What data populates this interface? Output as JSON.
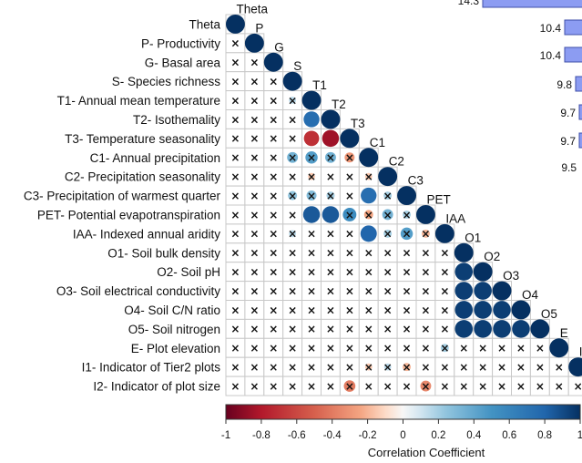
{
  "chart_data": {
    "type": "heatmap",
    "subtype": "lower-triangular correlation matrix with circles",
    "variables": [
      {
        "code": "Theta",
        "label": "Theta"
      },
      {
        "code": "P",
        "label": "P- Productivity"
      },
      {
        "code": "G",
        "label": "G- Basal area"
      },
      {
        "code": "S",
        "label": "S- Species richness"
      },
      {
        "code": "T1",
        "label": "T1- Annual mean temperature"
      },
      {
        "code": "T2",
        "label": "T2- Isothemality"
      },
      {
        "code": "T3",
        "label": "T3- Temperature seasonality"
      },
      {
        "code": "C1",
        "label": "C1- Annual precipitation"
      },
      {
        "code": "C2",
        "label": "C2- Precipitation seasonality"
      },
      {
        "code": "C3",
        "label": "C3- Precipitation of warmest quarter"
      },
      {
        "code": "PET",
        "label": "PET- Potential evapotranspiration"
      },
      {
        "code": "IAA",
        "label": "IAA- Indexed annual aridity"
      },
      {
        "code": "O1",
        "label": "O1- Soil bulk density"
      },
      {
        "code": "O2",
        "label": "O2- Soil pH"
      },
      {
        "code": "O3",
        "label": "O3- Soil electrical conductivity"
      },
      {
        "code": "O4",
        "label": "O4- Soil C/N ratio"
      },
      {
        "code": "O5",
        "label": "O5- Soil nitrogen"
      },
      {
        "code": "E",
        "label": "E- Plot elevation"
      },
      {
        "code": "I1",
        "label": "I1- Indicator of Tier2 plots"
      },
      {
        "code": "I2",
        "label": "I2- Indicator of plot size"
      }
    ],
    "correlations": [
      {
        "row": 4,
        "col": 3,
        "value": 0.15
      },
      {
        "row": 5,
        "col": 4,
        "value": 0.75
      },
      {
        "row": 6,
        "col": 4,
        "value": -0.7
      },
      {
        "row": 6,
        "col": 5,
        "value": -0.85
      },
      {
        "row": 7,
        "col": 3,
        "value": 0.35
      },
      {
        "row": 7,
        "col": 4,
        "value": 0.45
      },
      {
        "row": 7,
        "col": 5,
        "value": 0.35
      },
      {
        "row": 7,
        "col": 6,
        "value": -0.3
      },
      {
        "row": 8,
        "col": 4,
        "value": -0.15
      },
      {
        "row": 8,
        "col": 7,
        "value": -0.15
      },
      {
        "row": 9,
        "col": 3,
        "value": 0.25
      },
      {
        "row": 9,
        "col": 4,
        "value": 0.3
      },
      {
        "row": 9,
        "col": 5,
        "value": 0.2
      },
      {
        "row": 9,
        "col": 7,
        "value": 0.75
      },
      {
        "row": 9,
        "col": 8,
        "value": 0.2
      },
      {
        "row": 10,
        "col": 4,
        "value": 0.85
      },
      {
        "row": 10,
        "col": 5,
        "value": 0.85
      },
      {
        "row": 10,
        "col": 6,
        "value": 0.55
      },
      {
        "row": 10,
        "col": 7,
        "value": -0.25
      },
      {
        "row": 10,
        "col": 8,
        "value": 0.35
      },
      {
        "row": 10,
        "col": 9,
        "value": 0.2
      },
      {
        "row": 11,
        "col": 3,
        "value": 0.15
      },
      {
        "row": 11,
        "col": 7,
        "value": 0.8
      },
      {
        "row": 11,
        "col": 8,
        "value": 0.2
      },
      {
        "row": 11,
        "col": 9,
        "value": 0.45
      },
      {
        "row": 11,
        "col": 10,
        "value": -0.2
      },
      {
        "row": 17,
        "col": 11,
        "value": 0.2
      },
      {
        "row": 18,
        "col": 7,
        "value": -0.15
      },
      {
        "row": 18,
        "col": 8,
        "value": 0.15
      },
      {
        "row": 18,
        "col": 9,
        "value": -0.2
      },
      {
        "row": 19,
        "col": 6,
        "value": -0.4
      },
      {
        "row": 19,
        "col": 10,
        "value": -0.35
      }
    ],
    "block_correlations": [
      {
        "rows": [
          13,
          16
        ],
        "cols": [
          12,
          15
        ],
        "value": 0.95
      }
    ],
    "significance_marker": "×",
    "colorbar": {
      "title": "Correlation Coefficient",
      "range": [
        -1,
        1
      ],
      "ticks": [
        "-1",
        "-0.8",
        "-0.6",
        "-0.4",
        "-0.2",
        "0",
        "0.2",
        "0.4",
        "0.6",
        "0.8",
        "1"
      ],
      "colors": {
        "neg": "#67001f",
        "mid": "#f7f7f7",
        "pos": "#053061"
      }
    },
    "side_bars": {
      "values": [
        "14.3",
        "10.4",
        "10.4",
        "9.8",
        "9.7",
        "9.7",
        "9.5"
      ]
    }
  }
}
